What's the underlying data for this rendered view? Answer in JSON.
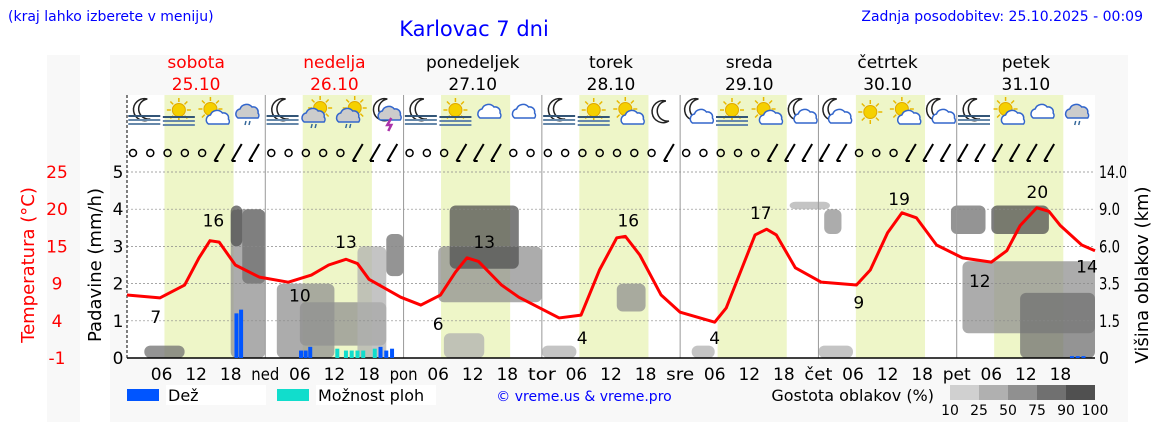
{
  "header": {
    "left_note": "(kraj lahko izberete v meniju)",
    "title": "Karlovac 7 dni",
    "updated": "Zadnja posodobitev: 25.10.2025 - 00:09"
  },
  "chart_data": {
    "type": "line",
    "title": "Karlovac 7 dni",
    "days": [
      {
        "name": "sobota",
        "date": "25.10",
        "weekend": true
      },
      {
        "name": "nedelja",
        "date": "26.10",
        "weekend": true
      },
      {
        "name": "ponedeljek",
        "date": "27.10",
        "weekend": false
      },
      {
        "name": "torek",
        "date": "28.10",
        "weekend": false
      },
      {
        "name": "sreda",
        "date": "29.10",
        "weekend": false
      },
      {
        "name": "četrtek",
        "date": "30.10",
        "weekend": false
      },
      {
        "name": "petek",
        "date": "31.10",
        "weekend": false
      }
    ],
    "day_abbr": [
      "",
      "ned",
      "pon",
      "tor",
      "sre",
      "čet",
      "pet"
    ],
    "hour_ticks": [
      "06",
      "12",
      "18"
    ],
    "temp_axis": {
      "label": "Temperatura (°C)",
      "ticks": [
        "25",
        "20",
        "15",
        "9",
        "4",
        "-1"
      ],
      "range": [
        -1,
        25
      ]
    },
    "precip_axis": {
      "label": "Padavine (mm/h)",
      "ticks": [
        "5",
        "4",
        "3",
        "2",
        "1",
        "0"
      ],
      "range": [
        0,
        5
      ]
    },
    "cloud_axis": {
      "label": "Višina oblakov (km)",
      "ticks": [
        "14.0",
        "9.0",
        "6.0",
        "3.5",
        "1.5",
        "0"
      ]
    },
    "temperature": [
      [
        0,
        7.8
      ],
      [
        5.7,
        7.4
      ],
      [
        10,
        9.2
      ],
      [
        12.5,
        13
      ],
      [
        14.4,
        15.4
      ],
      [
        16,
        15.2
      ],
      [
        18.8,
        12
      ],
      [
        23,
        10.3
      ],
      [
        28,
        9.6
      ],
      [
        32,
        10.6
      ],
      [
        35,
        12
      ],
      [
        38,
        12.8
      ],
      [
        40,
        12.2
      ],
      [
        42,
        10
      ],
      [
        47.5,
        7.5
      ],
      [
        51,
        6.4
      ],
      [
        54.4,
        7.8
      ],
      [
        57,
        11
      ],
      [
        59,
        13
      ],
      [
        61,
        12.5
      ],
      [
        65,
        9.2
      ],
      [
        68,
        7.5
      ],
      [
        75,
        4.6
      ],
      [
        78.8,
        5
      ],
      [
        82,
        11.3
      ],
      [
        85,
        15.8
      ],
      [
        86.5,
        16
      ],
      [
        89,
        13.4
      ],
      [
        92.7,
        7.8
      ],
      [
        96,
        5.4
      ],
      [
        102,
        4
      ],
      [
        104,
        6
      ],
      [
        106.6,
        11.3
      ],
      [
        109,
        16.2
      ],
      [
        111,
        17
      ],
      [
        112.7,
        16.2
      ],
      [
        116,
        11.6
      ],
      [
        120.5,
        9.6
      ],
      [
        126.6,
        9.2
      ],
      [
        129,
        11.3
      ],
      [
        132,
        16.5
      ],
      [
        134.5,
        19.3
      ],
      [
        137,
        18.6
      ],
      [
        140.5,
        14.8
      ],
      [
        145,
        13
      ],
      [
        150,
        12.4
      ],
      [
        152.7,
        14
      ],
      [
        155,
        17.5
      ],
      [
        157.9,
        20
      ],
      [
        160,
        19.5
      ],
      [
        162,
        17.5
      ],
      [
        165.7,
        14.8
      ],
      [
        168,
        14
      ]
    ],
    "temp_labels": [
      [
        5,
        "7"
      ],
      [
        15,
        "16"
      ],
      [
        30,
        "10"
      ],
      [
        38,
        "13"
      ],
      [
        54,
        "6"
      ],
      [
        62,
        "13"
      ],
      [
        79,
        "4"
      ],
      [
        87,
        "16"
      ],
      [
        102,
        "4"
      ],
      [
        110,
        "17"
      ],
      [
        127,
        "9"
      ],
      [
        134,
        "19"
      ],
      [
        148,
        "12"
      ],
      [
        158,
        "20"
      ],
      [
        168,
        "14"
      ]
    ],
    "rain": [
      [
        19,
        1.2
      ],
      [
        19.8,
        1.3
      ],
      [
        30.2,
        0.2
      ],
      [
        31,
        0.2
      ],
      [
        31.8,
        0.3
      ],
      [
        44,
        0.3
      ],
      [
        45,
        0.2
      ],
      [
        46,
        0.25
      ],
      [
        164,
        0.05
      ],
      [
        165,
        0.05
      ],
      [
        166,
        0.05
      ]
    ],
    "showers": [
      [
        36.5,
        0.25
      ],
      [
        38,
        0.2
      ],
      [
        39,
        0.2
      ],
      [
        40,
        0.2
      ],
      [
        41,
        0.2
      ],
      [
        43,
        0.25
      ]
    ],
    "clouds": [
      [
        3,
        10,
        0,
        0.5,
        75
      ],
      [
        18,
        24,
        0,
        9,
        50
      ],
      [
        20,
        24,
        3.5,
        9,
        75
      ],
      [
        18,
        20,
        6,
        9.5,
        90
      ],
      [
        26,
        36,
        0,
        3.5,
        50
      ],
      [
        30,
        45,
        0.5,
        2.5,
        50
      ],
      [
        40,
        45,
        0,
        6,
        25
      ],
      [
        45,
        48,
        4,
        7,
        75
      ],
      [
        54,
        72,
        2.5,
        6,
        50
      ],
      [
        56,
        68,
        4.5,
        9.5,
        90
      ],
      [
        72,
        78,
        0,
        0.5,
        25
      ],
      [
        55,
        62,
        0,
        1,
        25
      ],
      [
        85,
        90,
        2,
        3.5,
        50
      ],
      [
        98,
        102,
        0,
        0.5,
        25
      ],
      [
        115,
        122,
        9,
        10,
        25
      ],
      [
        121,
        124,
        7,
        9,
        50
      ],
      [
        120,
        126,
        0,
        0.5,
        25
      ],
      [
        143,
        149,
        7,
        9.5,
        75
      ],
      [
        145,
        168,
        1,
        5,
        50
      ],
      [
        150,
        160,
        7,
        9.5,
        90
      ],
      [
        155,
        168,
        0,
        3,
        75
      ]
    ],
    "icons": [
      "moon-fog",
      "sun-fog",
      "sun-cloud",
      "cloud-rain",
      "moon-fog",
      "sun-cloud-rain",
      "sun-cloud-rain",
      "moon-thunder",
      "moon-fog",
      "sun-fog",
      "cloud",
      "cloud",
      "moon-fog",
      "sun-fog",
      "sun-cloud",
      "moon",
      "moon-cloud",
      "sun-fog",
      "sun-cloud",
      "moon-cloud",
      "moon-cloud",
      "sun",
      "sun-cloud",
      "moon-cloud",
      "moon-fog",
      "sun-cloud",
      "cloud",
      "cloud-rain"
    ],
    "wind": "cccccwwwcccccwwwcccwwwcccccccccwcccccwwwwwcccwwwwwwwww"
  },
  "legend": {
    "rain": "Dež",
    "showers": "Možnost ploh",
    "copyright": "© vreme.us & vreme.pro",
    "cloud_density": "Gostota oblakov (%)",
    "density_ticks": [
      "10",
      "25",
      "50",
      "75",
      "90",
      "100"
    ]
  },
  "colors": {
    "rain": "#0055ff",
    "showers": "#11ddcc",
    "temp": "#ff0000",
    "day": "#eef6c8"
  }
}
